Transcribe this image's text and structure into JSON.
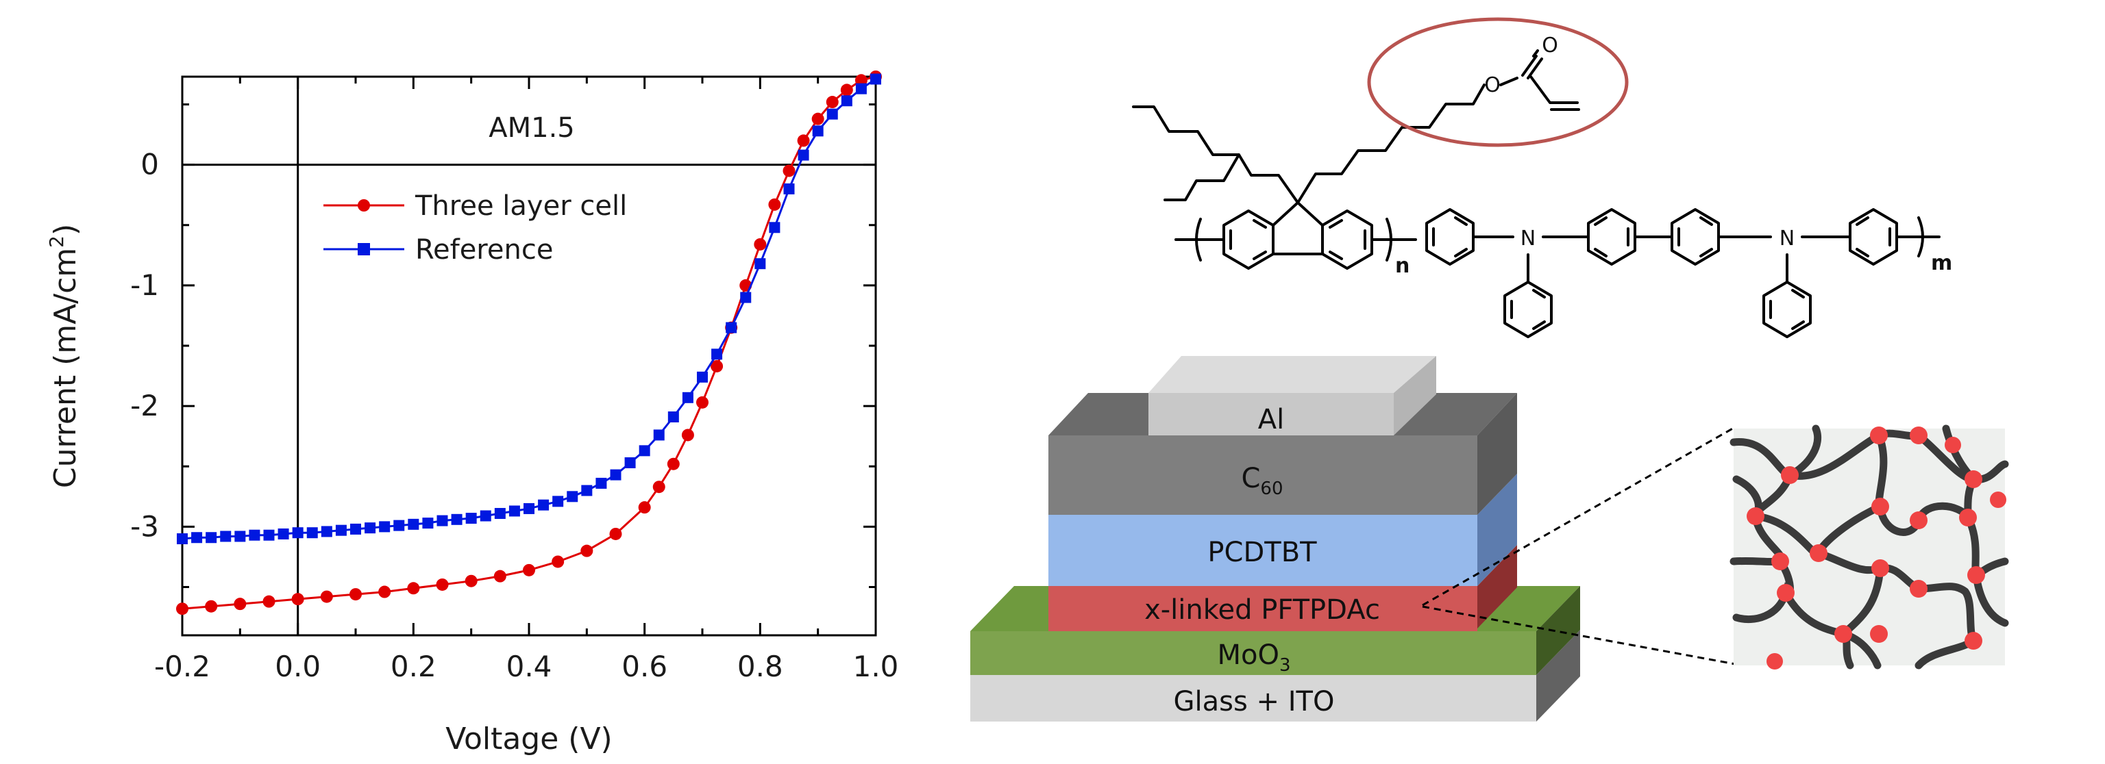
{
  "chart_data": {
    "type": "line",
    "annotation": "AM1.5",
    "xlabel": "Voltage (V)",
    "ylabel_main": "Current (mA/cm",
    "ylabel_sup": "2",
    "ylabel_end": ")",
    "xlim": [
      -0.2,
      1.0
    ],
    "ylim": [
      -3.9,
      0.73
    ],
    "x_ticks": [
      -0.2,
      0.0,
      0.2,
      0.4,
      0.6,
      0.8,
      1.0
    ],
    "x_tick_labels": [
      "-0.2",
      "0.0",
      "0.2",
      "0.4",
      "0.6",
      "0.8",
      "1.0"
    ],
    "y_ticks": [
      0,
      -1,
      -2,
      -3
    ],
    "y_tick_labels": [
      "0",
      "-1",
      "-2",
      "-3"
    ],
    "legend_position": "top-left",
    "series": [
      {
        "name": "Three layer cell",
        "color": "#e00000",
        "marker": "circle",
        "x": [
          -0.2,
          -0.15,
          -0.1,
          -0.05,
          0.0,
          0.05,
          0.1,
          0.15,
          0.2,
          0.25,
          0.3,
          0.35,
          0.4,
          0.45,
          0.5,
          0.55,
          0.6,
          0.625,
          0.65,
          0.675,
          0.7,
          0.725,
          0.75,
          0.775,
          0.8,
          0.825,
          0.85,
          0.875,
          0.9,
          0.925,
          0.95,
          0.975,
          1.0
        ],
        "y": [
          -3.68,
          -3.66,
          -3.64,
          -3.62,
          -3.6,
          -3.58,
          -3.56,
          -3.54,
          -3.51,
          -3.48,
          -3.45,
          -3.41,
          -3.36,
          -3.29,
          -3.2,
          -3.06,
          -2.84,
          -2.67,
          -2.48,
          -2.24,
          -1.97,
          -1.67,
          -1.35,
          -1.0,
          -0.66,
          -0.33,
          -0.05,
          0.2,
          0.38,
          0.52,
          0.62,
          0.7,
          0.73
        ]
      },
      {
        "name": "Reference",
        "color": "#0018e0",
        "marker": "square",
        "x": [
          -0.2,
          -0.175,
          -0.15,
          -0.125,
          -0.1,
          -0.075,
          -0.05,
          -0.025,
          0.0,
          0.025,
          0.05,
          0.075,
          0.1,
          0.125,
          0.15,
          0.175,
          0.2,
          0.225,
          0.25,
          0.275,
          0.3,
          0.325,
          0.35,
          0.375,
          0.4,
          0.425,
          0.45,
          0.475,
          0.5,
          0.525,
          0.55,
          0.575,
          0.6,
          0.625,
          0.65,
          0.675,
          0.7,
          0.725,
          0.75,
          0.775,
          0.8,
          0.825,
          0.85,
          0.875,
          0.9,
          0.925,
          0.95,
          0.975,
          1.0
        ],
        "y": [
          -3.1,
          -3.09,
          -3.09,
          -3.08,
          -3.08,
          -3.07,
          -3.07,
          -3.06,
          -3.05,
          -3.05,
          -3.04,
          -3.03,
          -3.02,
          -3.01,
          -3.0,
          -2.99,
          -2.98,
          -2.97,
          -2.95,
          -2.94,
          -2.93,
          -2.91,
          -2.89,
          -2.87,
          -2.85,
          -2.82,
          -2.79,
          -2.75,
          -2.7,
          -2.64,
          -2.57,
          -2.47,
          -2.37,
          -2.24,
          -2.09,
          -1.93,
          -1.76,
          -1.57,
          -1.35,
          -1.1,
          -0.82,
          -0.52,
          -0.2,
          0.08,
          0.28,
          0.42,
          0.53,
          0.63,
          0.71
        ]
      }
    ]
  },
  "structure": {
    "repeat_n": "n",
    "repeat_m": "m",
    "atom_O_ester": "O",
    "atom_O_carbonyl": "O",
    "atom_N1": "N",
    "atom_N2": "N"
  },
  "device": {
    "top_contact": "Al",
    "acceptor_base": "C",
    "acceptor_sub": "60",
    "donor": "PCDTBT",
    "crosslinked_layer": "x-linked PFTPDAc",
    "buffer_base": "MoO",
    "buffer_sub": "3",
    "substrate": "Glass + ITO"
  },
  "colors": {
    "al_front": "#c8c8c8",
    "al_top": "#dcdcdc",
    "c60_front": "#7f7f7f",
    "c60_top": "#6b6b6b",
    "c60_side": "#5a5a5a",
    "pcdtbt_front": "#96b9eb",
    "pcdtbt_side": "#5d7cae",
    "xlinked_front": "#d05757",
    "xlinked_side": "#8c2f2f",
    "moo3_front": "#7ea34e",
    "moo3_top": "#6f9a3e",
    "moo3_side": "#3f5a22",
    "glass_front": "#d7d7d7",
    "glass_side": "#626262",
    "highlight_ellipse": "#b85450",
    "network_strand": "#3a3a3a",
    "network_node": "#ef4444"
  }
}
